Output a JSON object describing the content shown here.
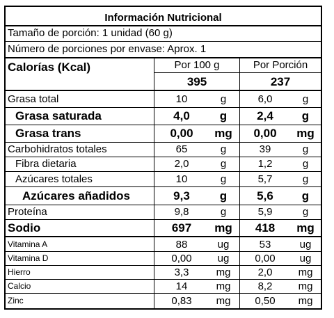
{
  "title": "Información Nutricional",
  "serving_size": "Tamaño de porción: 1 unidad (60 g)",
  "servings_per_package": "Número de porciones por envase: Aprox. 1",
  "header": {
    "per100_label": "Por 100 g",
    "perserving_label": "Por Porción"
  },
  "calories": {
    "label": "Calorías (Kcal)",
    "per100": "395",
    "perserving": "237"
  },
  "rows": [
    {
      "label": "Grasa total",
      "per100": "10",
      "unit100": "g",
      "perserving": "6,0",
      "unitserv": "g"
    },
    {
      "label": "Grasa saturada",
      "per100": "4,0",
      "unit100": "g",
      "perserving": "2,4",
      "unitserv": "g"
    },
    {
      "label": "Grasa trans",
      "per100": "0,00",
      "unit100": "mg",
      "perserving": "0,00",
      "unitserv": "mg"
    },
    {
      "label": "Carbohidratos totales",
      "per100": "65",
      "unit100": "g",
      "perserving": "39",
      "unitserv": "g"
    },
    {
      "label": "Fibra dietaria",
      "per100": "2,0",
      "unit100": "g",
      "perserving": "1,2",
      "unitserv": "g"
    },
    {
      "label": "Azúcares totales",
      "per100": "10",
      "unit100": "g",
      "perserving": "5,7",
      "unitserv": "g"
    },
    {
      "label": "Azúcares añadidos",
      "per100": "9,3",
      "unit100": "g",
      "perserving": "5,6",
      "unitserv": "g"
    },
    {
      "label": "Proteína",
      "per100": "9,8",
      "unit100": "g",
      "perserving": "5,9",
      "unitserv": "g"
    },
    {
      "label": "Sodio",
      "per100": "697",
      "unit100": "mg",
      "perserving": "418",
      "unitserv": "mg"
    },
    {
      "label": "Vitamina A",
      "per100": "88",
      "unit100": "ug",
      "perserving": "53",
      "unitserv": "ug"
    },
    {
      "label": "Vitamina D",
      "per100": "0,00",
      "unit100": "ug",
      "perserving": "0,00",
      "unitserv": "ug"
    },
    {
      "label": "Hierro",
      "per100": "3,3",
      "unit100": "mg",
      "perserving": "2,0",
      "unitserv": "mg"
    },
    {
      "label": "Calcio",
      "per100": "14",
      "unit100": "mg",
      "perserving": "8,2",
      "unitserv": "mg"
    },
    {
      "label": "Zinc",
      "per100": "0,83",
      "unit100": "mg",
      "perserving": "0,50",
      "unitserv": "mg"
    }
  ]
}
